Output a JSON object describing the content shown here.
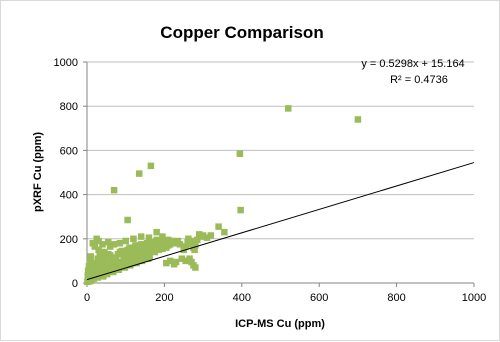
{
  "chart_data": {
    "type": "scatter",
    "title": "Copper Comparison",
    "xlabel": "ICP-MS Cu (ppm)",
    "ylabel": "pXRF Cu (ppm)",
    "xlim": [
      0,
      1000
    ],
    "ylim": [
      0,
      1000
    ],
    "xticks": [
      "0",
      "200",
      "400",
      "600",
      "800",
      "1000"
    ],
    "yticks": [
      "0",
      "200",
      "400",
      "600",
      "800",
      "1000"
    ],
    "grid": "horizontal",
    "marker_color": "#9BBB59",
    "trendline": {
      "slope": 0.5298,
      "intercept": 15.164,
      "equation": "y = 0.5298x + 15.164",
      "r_squared": "R² = 0.4736"
    },
    "series": [
      {
        "values": [
          [
            700,
            740
          ],
          [
            520,
            790
          ],
          [
            395,
            585
          ],
          [
            397,
            330
          ],
          [
            340,
            255
          ],
          [
            355,
            230
          ],
          [
            165,
            530
          ],
          [
            135,
            495
          ],
          [
            70,
            420
          ],
          [
            105,
            285
          ],
          [
            25,
            200
          ],
          [
            20,
            165
          ],
          [
            15,
            180
          ],
          [
            30,
            150
          ],
          [
            60,
            165
          ],
          [
            45,
            140
          ],
          [
            55,
            130
          ],
          [
            10,
            120
          ],
          [
            8,
            95
          ],
          [
            5,
            75
          ],
          [
            3,
            55
          ],
          [
            2,
            35
          ],
          [
            4,
            20
          ],
          [
            6,
            10
          ],
          [
            1,
            5
          ],
          [
            10,
            15
          ],
          [
            14,
            30
          ],
          [
            18,
            45
          ],
          [
            22,
            60
          ],
          [
            26,
            72
          ],
          [
            30,
            85
          ],
          [
            35,
            95
          ],
          [
            40,
            105
          ],
          [
            45,
            80
          ],
          [
            50,
            110
          ],
          [
            55,
            120
          ],
          [
            60,
            125
          ],
          [
            65,
            95
          ],
          [
            70,
            105
          ],
          [
            75,
            115
          ],
          [
            80,
            130
          ],
          [
            85,
            140
          ],
          [
            90,
            145
          ],
          [
            95,
            120
          ],
          [
            100,
            130
          ],
          [
            105,
            150
          ],
          [
            110,
            160
          ],
          [
            115,
            135
          ],
          [
            120,
            155
          ],
          [
            125,
            170
          ],
          [
            130,
            145
          ],
          [
            135,
            165
          ],
          [
            140,
            175
          ],
          [
            145,
            150
          ],
          [
            150,
            170
          ],
          [
            155,
            180
          ],
          [
            160,
            160
          ],
          [
            165,
            175
          ],
          [
            170,
            185
          ],
          [
            175,
            165
          ],
          [
            180,
            195
          ],
          [
            185,
            175
          ],
          [
            190,
            180
          ],
          [
            195,
            190
          ],
          [
            200,
            170
          ],
          [
            205,
            185
          ],
          [
            210,
            195
          ],
          [
            215,
            175
          ],
          [
            220,
            190
          ],
          [
            225,
            180
          ],
          [
            230,
            185
          ],
          [
            235,
            190
          ],
          [
            240,
            175
          ],
          [
            15,
            50
          ],
          [
            20,
            40
          ],
          [
            25,
            55
          ],
          [
            30,
            45
          ],
          [
            35,
            65
          ],
          [
            40,
            55
          ],
          [
            45,
            60
          ],
          [
            50,
            70
          ],
          [
            55,
            65
          ],
          [
            60,
            75
          ],
          [
            65,
            80
          ],
          [
            70,
            70
          ],
          [
            75,
            85
          ],
          [
            80,
            90
          ],
          [
            85,
            95
          ],
          [
            90,
            85
          ],
          [
            95,
            100
          ],
          [
            100,
            105
          ],
          [
            105,
            95
          ],
          [
            110,
            110
          ],
          [
            115,
            100
          ],
          [
            120,
            115
          ],
          [
            125,
            120
          ],
          [
            130,
            110
          ],
          [
            135,
            125
          ],
          [
            140,
            130
          ],
          [
            145,
            120
          ],
          [
            150,
            135
          ],
          [
            155,
            140
          ],
          [
            160,
            125
          ],
          [
            165,
            145
          ],
          [
            170,
            150
          ],
          [
            175,
            140
          ],
          [
            180,
            155
          ],
          [
            185,
            150
          ],
          [
            190,
            160
          ],
          [
            195,
            155
          ],
          [
            200,
            165
          ],
          [
            205,
            160
          ],
          [
            210,
            170
          ],
          [
            12,
            25
          ],
          [
            18,
            20
          ],
          [
            24,
            30
          ],
          [
            28,
            25
          ],
          [
            34,
            35
          ],
          [
            38,
            40
          ],
          [
            42,
            30
          ],
          [
            48,
            45
          ],
          [
            52,
            40
          ],
          [
            58,
            50
          ],
          [
            62,
            55
          ],
          [
            68,
            50
          ],
          [
            72,
            60
          ],
          [
            78,
            65
          ],
          [
            82,
            60
          ],
          [
            88,
            70
          ],
          [
            92,
            75
          ],
          [
            98,
            70
          ],
          [
            102,
            80
          ],
          [
            108,
            85
          ],
          [
            112,
            80
          ],
          [
            118,
            90
          ],
          [
            122,
            95
          ],
          [
            128,
            90
          ],
          [
            132,
            100
          ],
          [
            138,
            105
          ],
          [
            142,
            100
          ],
          [
            148,
            110
          ],
          [
            152,
            115
          ],
          [
            158,
            110
          ],
          [
            162,
            120
          ],
          [
            5,
            15
          ],
          [
            8,
            8
          ],
          [
            12,
            12
          ],
          [
            3,
            28
          ],
          [
            7,
            42
          ],
          [
            9,
            60
          ],
          [
            16,
            70
          ],
          [
            20,
            90
          ],
          [
            28,
            110
          ],
          [
            33,
            125
          ],
          [
            38,
            140
          ],
          [
            42,
            120
          ],
          [
            48,
            95
          ],
          [
            205,
            90
          ],
          [
            215,
            100
          ],
          [
            230,
            95
          ],
          [
            245,
            110
          ],
          [
            250,
            150
          ],
          [
            255,
            165
          ],
          [
            260,
            185
          ],
          [
            262,
            200
          ],
          [
            268,
            190
          ],
          [
            270,
            175
          ],
          [
            275,
            160
          ],
          [
            278,
            150
          ],
          [
            280,
            170
          ],
          [
            285,
            195
          ],
          [
            290,
            220
          ],
          [
            295,
            210
          ],
          [
            300,
            215
          ],
          [
            310,
            205
          ],
          [
            320,
            215
          ],
          [
            255,
            100
          ],
          [
            265,
            110
          ],
          [
            270,
            95
          ],
          [
            275,
            80
          ],
          [
            280,
            70
          ],
          [
            225,
            85
          ],
          [
            195,
            210
          ],
          [
            180,
            230
          ],
          [
            160,
            205
          ],
          [
            140,
            210
          ],
          [
            120,
            200
          ],
          [
            100,
            190
          ],
          [
            85,
            180
          ],
          [
            70,
            175
          ],
          [
            55,
            185
          ],
          [
            40,
            175
          ],
          [
            30,
            190
          ]
        ]
      }
    ]
  }
}
